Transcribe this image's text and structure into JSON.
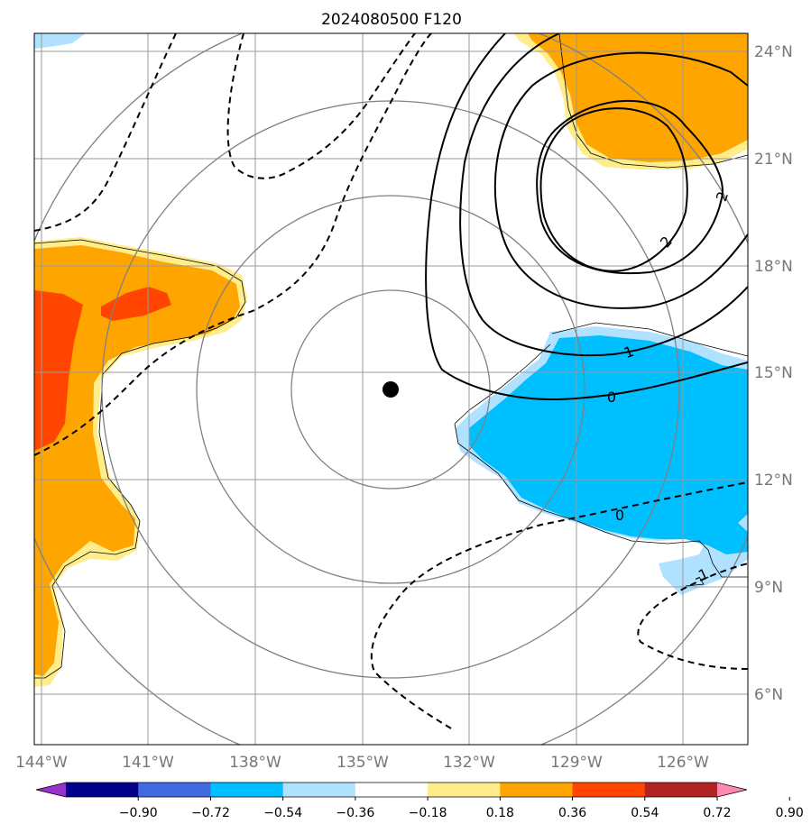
{
  "title": "2024080500 F120",
  "longitude_labels": [
    "144°W",
    "141°W",
    "138°W",
    "135°W",
    "132°W",
    "129°W",
    "126°W"
  ],
  "latitude_labels": [
    "24°N",
    "21°N",
    "18°N",
    "15°N",
    "12°N",
    "9°N",
    "6°N"
  ],
  "colorbar": {
    "tick_labels": [
      "−0.90",
      "−0.72",
      "−0.54",
      "−0.36",
      "−0.18",
      "0.18",
      "0.36",
      "0.54",
      "0.72",
      "0.90"
    ],
    "colors": [
      "#9932CC",
      "#00008B",
      "#4169E1",
      "#00BFFF",
      "#B0E2FF",
      "#FFFFFF",
      "#FFEC8B",
      "#FFA500",
      "#FF4500",
      "#B22222",
      "#FF88B0"
    ]
  },
  "contour_labels": {
    "solid_2a": "2",
    "solid_2b": "2",
    "solid_1": "1",
    "solid_0": "0",
    "dashed_0": "0",
    "dashed_1": "-1"
  },
  "center_marker": {
    "lon": "134.3°W",
    "lat": "14.5°N"
  },
  "colors": {
    "grid": "#999999",
    "range_rings": "#808080",
    "contour": "#000000",
    "axis_label": "#777777"
  }
}
